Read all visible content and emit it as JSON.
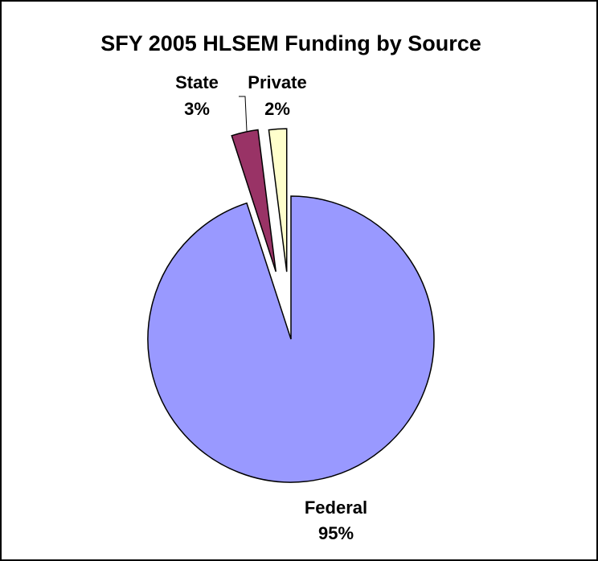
{
  "chart_data": {
    "type": "pie",
    "title": "SFY 2005 HLSEM Funding by Source",
    "categories": [
      "Federal",
      "State",
      "Private"
    ],
    "values": [
      95,
      3,
      2
    ],
    "value_labels": [
      "95%",
      "3%",
      "2%"
    ],
    "colors": [
      "#9999ff",
      "#993366",
      "#ffffcc"
    ]
  }
}
